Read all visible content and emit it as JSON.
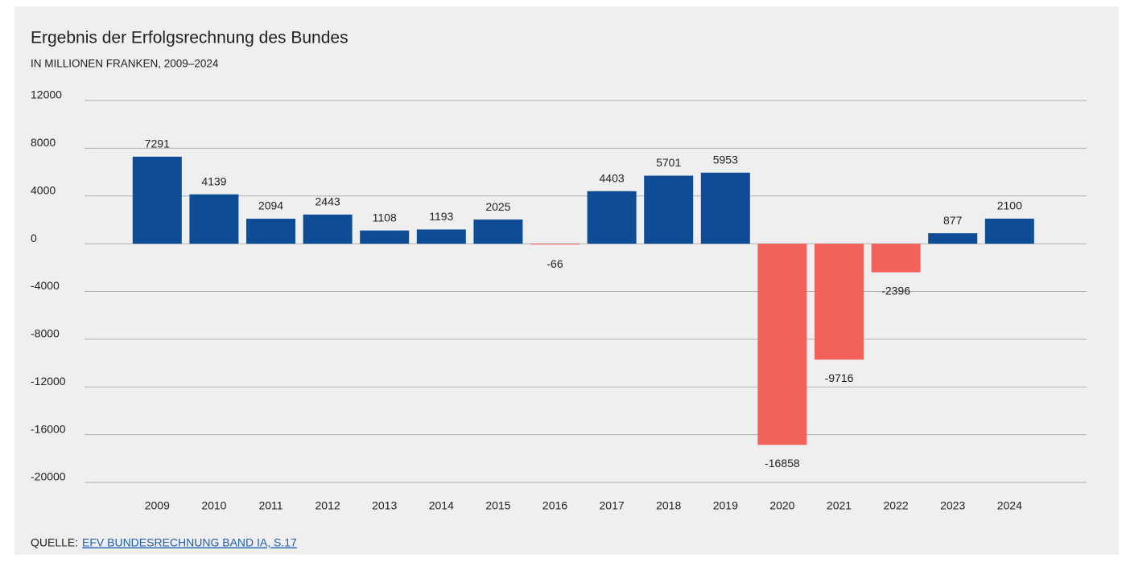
{
  "chart_data": {
    "type": "bar",
    "title": "Ergebnis der Erfolgsrechnung des Bundes",
    "subtitle": "IN MILLIONEN FRANKEN, 2009–2024",
    "categories": [
      "2009",
      "2010",
      "2011",
      "2012",
      "2013",
      "2014",
      "2015",
      "2016",
      "2017",
      "2018",
      "2019",
      "2020",
      "2021",
      "2022",
      "2023",
      "2024"
    ],
    "values": [
      7291,
      4139,
      2094,
      2443,
      1108,
      1193,
      2025,
      -66,
      4403,
      5701,
      5953,
      -16858,
      -9716,
      -2396,
      877,
      2100
    ],
    "color": "#0f4c96",
    "negative_color": "#f2625b",
    "ylim": [
      -20000,
      12000
    ],
    "yticks": [
      -20000,
      -16000,
      -12000,
      -8000,
      -4000,
      0,
      4000,
      8000,
      12000
    ],
    "grid": true,
    "source": {
      "label": "QUELLE:",
      "link": "EFV BUNDESRECHNUNG BAND IA, S.17"
    }
  }
}
